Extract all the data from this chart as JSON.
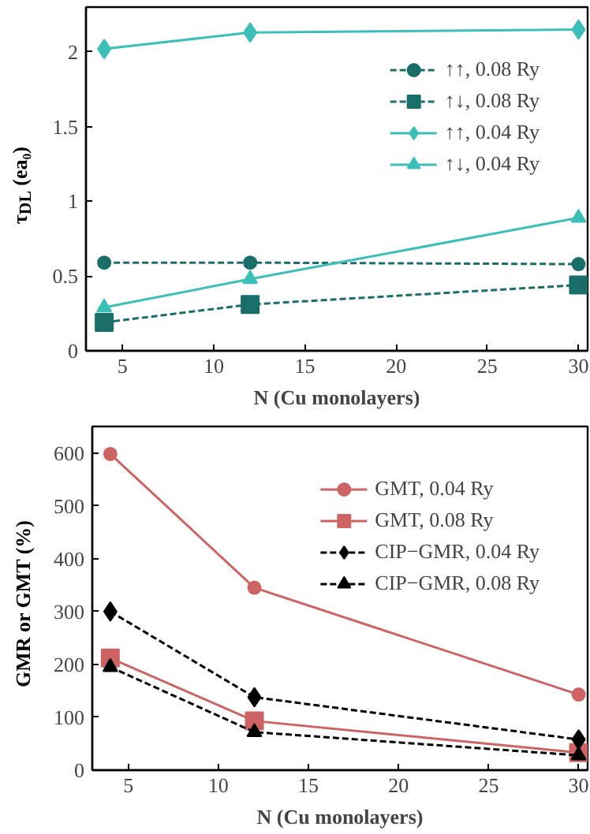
{
  "chart_data": [
    {
      "type": "line",
      "xlabel": "N (Cu monolayers)",
      "ylabel": "τ$_{DL}$ (ea₀)",
      "x": [
        4,
        12,
        30
      ],
      "xlim": [
        3,
        30.5
      ],
      "xticks": [
        5,
        10,
        15,
        20,
        25,
        30
      ],
      "ylim": [
        0,
        2.3
      ],
      "yticks": [
        0.0,
        0.5,
        1.0,
        1.5,
        2.0
      ],
      "grid": false,
      "legend": "top right",
      "series": [
        {
          "name": "↑↑, 0.08 Ry",
          "color": "#1a6e6a",
          "values": [
            0.59,
            0.59,
            0.58
          ],
          "marker": "circle",
          "line_style": "dashed"
        },
        {
          "name": "↑↓, 0.08 Ry",
          "color": "#1a6e6a",
          "values": [
            0.19,
            0.31,
            0.44
          ],
          "marker": "square",
          "line_style": "dashed"
        },
        {
          "name": "↑↑, 0.04 Ry",
          "color": "#3cbfb8",
          "values": [
            2.02,
            2.13,
            2.15
          ],
          "marker": "diamond",
          "line_style": "solid"
        },
        {
          "name": "↑↓, 0.04 Ry",
          "color": "#3cbfb8",
          "values": [
            0.29,
            0.48,
            0.89
          ],
          "marker": "triangle",
          "line_style": "solid"
        }
      ]
    },
    {
      "type": "line",
      "xlabel": "N (Cu monolayers)",
      "ylabel": "GMR or GMT (%)",
      "x": [
        4,
        12,
        30
      ],
      "xlim": [
        3,
        30.5
      ],
      "xticks": [
        5,
        10,
        15,
        20,
        25,
        30
      ],
      "ylim": [
        0,
        650
      ],
      "yticks": [
        0,
        100,
        200,
        300,
        400,
        500,
        600
      ],
      "grid": false,
      "legend": "top right",
      "series": [
        {
          "name": "GMT, 0.04 Ry",
          "color": "#cd6363",
          "values": [
            598,
            345,
            143
          ],
          "marker": "circle",
          "line_style": "solid"
        },
        {
          "name": "GMT, 0.08 Ry",
          "color": "#cd6363",
          "values": [
            212,
            93,
            33
          ],
          "marker": "square",
          "line_style": "solid"
        },
        {
          "name": "CIP−GMR, 0.04 Ry",
          "color": "#000000",
          "values": [
            300,
            138,
            58
          ],
          "marker": "diamond",
          "line_style": "dashed"
        },
        {
          "name": "CIP−GMR, 0.08 Ry",
          "color": "#000000",
          "values": [
            195,
            72,
            28
          ],
          "marker": "triangle",
          "line_style": "dashed"
        }
      ]
    }
  ]
}
